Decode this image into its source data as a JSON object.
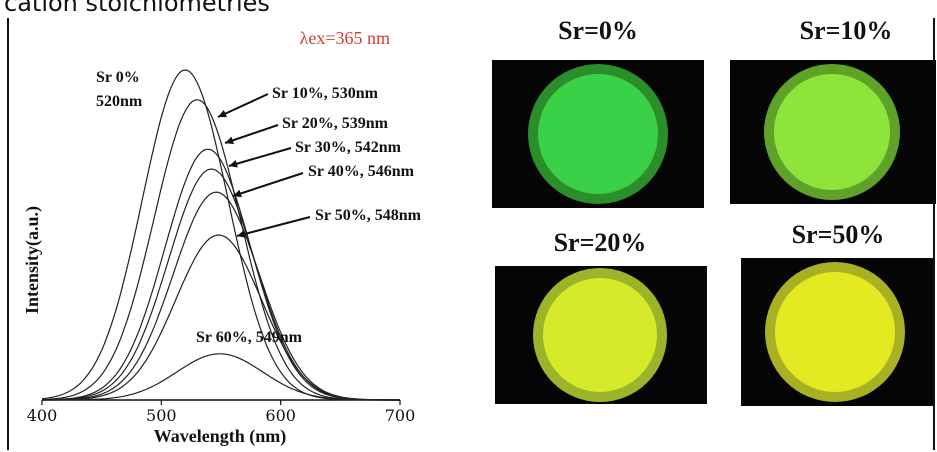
{
  "header_fragment": "cation stoichiometries",
  "chart_data": {
    "type": "line",
    "xlabel": "Wavelength (nm)",
    "ylabel": "Intensity(a.u.)",
    "xlim": [
      400,
      700
    ],
    "xticks": [
      "400",
      "500",
      "600",
      "700"
    ],
    "annotation_excitation": "λex=365 nm",
    "series": [
      {
        "name": "Sr 0%",
        "peak_nm": 520,
        "relative_intensity": 1.0
      },
      {
        "name": "Sr 10%",
        "peak_nm": 530,
        "relative_intensity": 0.91
      },
      {
        "name": "Sr 20%",
        "peak_nm": 539,
        "relative_intensity": 0.76
      },
      {
        "name": "Sr 30%",
        "peak_nm": 542,
        "relative_intensity": 0.7
      },
      {
        "name": "Sr 40%",
        "peak_nm": 546,
        "relative_intensity": 0.63
      },
      {
        "name": "Sr 50%",
        "peak_nm": 548,
        "relative_intensity": 0.5
      },
      {
        "name": "Sr 60%",
        "peak_nm": 549,
        "relative_intensity": 0.14
      }
    ],
    "labels": [
      {
        "line1": "Sr 0%",
        "line2": "520nm"
      },
      {
        "line1": "Sr 10%, 530nm"
      },
      {
        "line1": "Sr 20%, 539nm"
      },
      {
        "line1": "Sr 30%, 542nm"
      },
      {
        "line1": "Sr 40%, 546nm"
      },
      {
        "line1": "Sr 50%, 548nm"
      },
      {
        "line1": "Sr 60%, 549nm"
      }
    ]
  },
  "photos": [
    {
      "label": "Sr=0%",
      "disc_color": "#3ad048",
      "rim_color": "#2a8f2a"
    },
    {
      "label": "Sr=10%",
      "disc_color": "#8ee43a",
      "rim_color": "#5fa22a"
    },
    {
      "label": "Sr=20%",
      "disc_color": "#d6ea2a",
      "rim_color": "#9bb52a"
    },
    {
      "label": "Sr=50%",
      "disc_color": "#e3ea22",
      "rim_color": "#a8b024"
    }
  ]
}
